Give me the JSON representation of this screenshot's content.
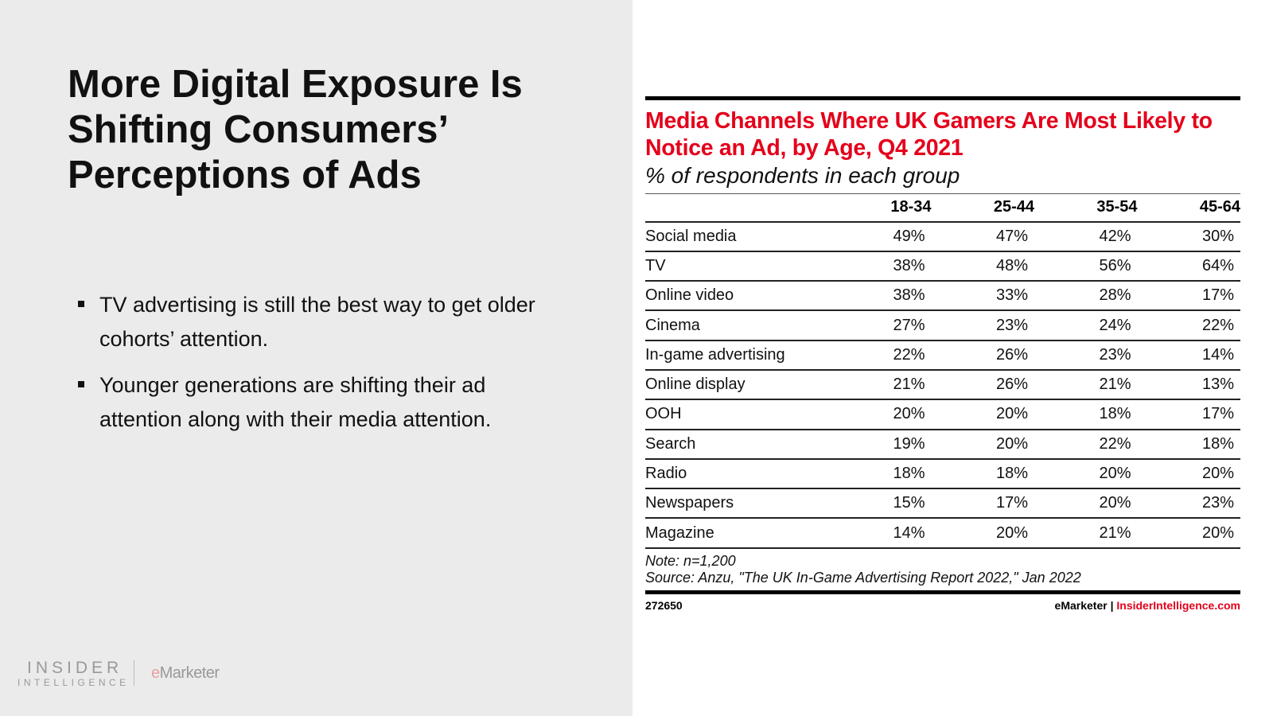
{
  "slide": {
    "title": "More Digital Exposure Is Shifting Consumers’ Perceptions of Ads",
    "bullets": [
      "TV advertising is still the best way to get older cohorts’ attention.",
      "Younger generations are shifting their ad attention along with their media attention."
    ],
    "logo_insider": "INSIDER",
    "logo_intelligence": "INTELLIGENCE",
    "logo_emarketer_e": "e",
    "logo_emarketer_rest": "Marketer"
  },
  "chart_data": {
    "type": "table",
    "title": "Media Channels Where UK Gamers Are Most Likely to Notice an Ad, by Age, Q4 2021",
    "subtitle": "% of respondents in each group",
    "columns": [
      "",
      "18-34",
      "25-44",
      "35-54",
      "45-64"
    ],
    "rows": [
      [
        "Social media",
        "49%",
        "47%",
        "42%",
        "30%"
      ],
      [
        "TV",
        "38%",
        "48%",
        "56%",
        "64%"
      ],
      [
        "Online video",
        "38%",
        "33%",
        "28%",
        "17%"
      ],
      [
        "Cinema",
        "27%",
        "23%",
        "24%",
        "22%"
      ],
      [
        "In-game advertising",
        "22%",
        "26%",
        "23%",
        "14%"
      ],
      [
        "Online display",
        "21%",
        "26%",
        "21%",
        "13%"
      ],
      [
        "OOH",
        "20%",
        "20%",
        "18%",
        "17%"
      ],
      [
        "Search",
        "19%",
        "20%",
        "22%",
        "18%"
      ],
      [
        "Radio",
        "18%",
        "18%",
        "20%",
        "20%"
      ],
      [
        "Newspapers",
        "15%",
        "17%",
        "20%",
        "23%"
      ],
      [
        "Magazine",
        "14%",
        "20%",
        "21%",
        "20%"
      ]
    ],
    "note": "Note: n=1,200",
    "source": "Source: Anzu, \"The UK In-Game Advertising Report 2022,\" Jan 2022",
    "id": "272650",
    "brand": "eMarketer",
    "site": "InsiderIntelligence.com",
    "separator": "|"
  }
}
